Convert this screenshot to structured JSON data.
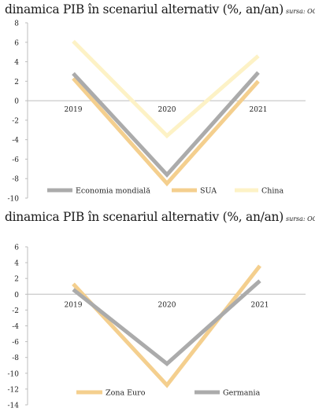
{
  "chart_data": [
    {
      "type": "line",
      "title": "dinamica PIB în scenariul alternativ (%, an/an)",
      "source": "sursa: OCDE",
      "categories": [
        "2019",
        "2020",
        "2021"
      ],
      "ylim": [
        -10,
        8
      ],
      "yticks": [
        8,
        6,
        4,
        2,
        0,
        -2,
        -4,
        -6,
        -8,
        -10
      ],
      "legend": "bottom",
      "grid": false,
      "series": [
        {
          "name": "China",
          "color": "#fdf2c6",
          "values": [
            6.1,
            -3.6,
            4.6
          ]
        },
        {
          "name": "SUA",
          "color": "#f4cf8e",
          "values": [
            2.3,
            -8.5,
            2.0
          ]
        },
        {
          "name": "Economia mondială",
          "color": "#ababab",
          "values": [
            2.8,
            -7.6,
            2.9
          ]
        }
      ],
      "legend_order": [
        "Economia mondială",
        "SUA",
        "China"
      ]
    },
    {
      "type": "line",
      "title": "dinamica PIB în scenariul alternativ (%, an/an)",
      "source": "sursa: OCDE",
      "categories": [
        "2019",
        "2020",
        "2021"
      ],
      "ylim": [
        -14,
        6
      ],
      "yticks": [
        6,
        4,
        2,
        0,
        -2,
        -4,
        -6,
        -8,
        -10,
        -12,
        -14
      ],
      "legend": "bottom",
      "grid": false,
      "series": [
        {
          "name": "Zona Euro",
          "color": "#f4cf8e",
          "values": [
            1.3,
            -11.5,
            3.6
          ]
        },
        {
          "name": "Germania",
          "color": "#ababab",
          "values": [
            0.6,
            -8.8,
            1.7
          ]
        }
      ],
      "legend_order": [
        "Zona Euro",
        "Germania"
      ]
    }
  ]
}
